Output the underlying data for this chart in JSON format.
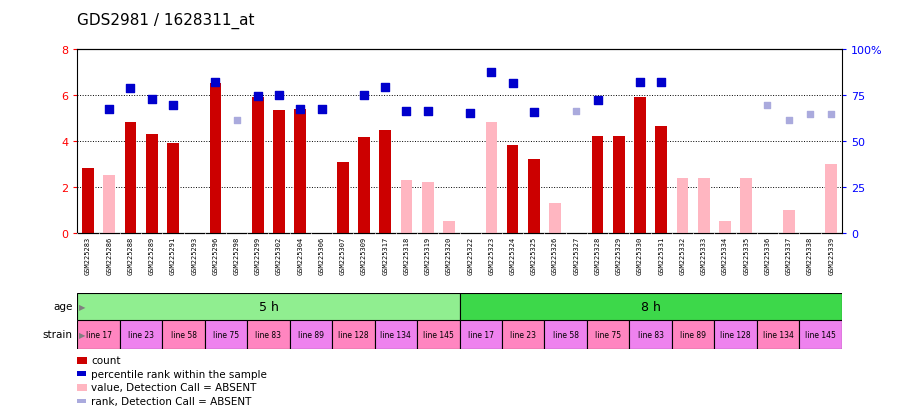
{
  "title": "GDS2981 / 1628311_at",
  "samples": [
    "GSM225283",
    "GSM225286",
    "GSM225288",
    "GSM225289",
    "GSM225291",
    "GSM225293",
    "GSM225296",
    "GSM225298",
    "GSM225299",
    "GSM225302",
    "GSM225304",
    "GSM225306",
    "GSM225307",
    "GSM225309",
    "GSM225317",
    "GSM225318",
    "GSM225319",
    "GSM225320",
    "GSM225322",
    "GSM225323",
    "GSM225324",
    "GSM225325",
    "GSM225326",
    "GSM225327",
    "GSM225328",
    "GSM225329",
    "GSM225330",
    "GSM225331",
    "GSM225332",
    "GSM225333",
    "GSM225334",
    "GSM225335",
    "GSM225336",
    "GSM225337",
    "GSM225338",
    "GSM225339"
  ],
  "count_values": [
    2.8,
    null,
    4.8,
    4.3,
    3.9,
    null,
    6.5,
    null,
    5.9,
    5.35,
    5.4,
    null,
    3.1,
    4.15,
    4.45,
    null,
    null,
    null,
    null,
    null,
    3.8,
    3.2,
    null,
    null,
    4.2,
    4.2,
    5.9,
    4.65,
    null,
    null,
    null,
    null,
    null,
    null,
    null,
    null
  ],
  "absent_bar_values": [
    null,
    2.5,
    null,
    null,
    null,
    null,
    null,
    null,
    null,
    null,
    null,
    null,
    null,
    null,
    null,
    2.3,
    2.2,
    0.5,
    null,
    4.8,
    null,
    null,
    1.3,
    null,
    null,
    null,
    null,
    null,
    2.4,
    2.4,
    0.5,
    2.4,
    null,
    1.0,
    null,
    3.0
  ],
  "rank_values": [
    null,
    5.4,
    6.3,
    5.8,
    5.55,
    null,
    6.55,
    null,
    5.95,
    6.0,
    5.4,
    5.4,
    null,
    6.0,
    6.35,
    5.3,
    5.3,
    null,
    5.2,
    7.0,
    6.5,
    5.25,
    null,
    null,
    5.75,
    null,
    6.55,
    6.55,
    null,
    null,
    null,
    null,
    null,
    null,
    null,
    null
  ],
  "absent_rank_values": [
    null,
    null,
    null,
    null,
    null,
    null,
    null,
    4.9,
    null,
    null,
    null,
    null,
    null,
    null,
    null,
    null,
    null,
    null,
    null,
    null,
    null,
    null,
    null,
    5.3,
    null,
    null,
    null,
    null,
    null,
    null,
    null,
    null,
    5.55,
    4.9,
    5.15,
    5.15
  ],
  "age_groups": [
    {
      "label": "5 h",
      "start": 0,
      "end": 18,
      "color": "#90EE90"
    },
    {
      "label": "8 h",
      "start": 18,
      "end": 36,
      "color": "#3DD84A"
    }
  ],
  "strain_groups": [
    {
      "label": "line 17",
      "start": 0,
      "end": 2,
      "color": "#FF85C0"
    },
    {
      "label": "line 23",
      "start": 2,
      "end": 4,
      "color": "#EE82EE"
    },
    {
      "label": "line 58",
      "start": 4,
      "end": 6,
      "color": "#FF85C0"
    },
    {
      "label": "line 75",
      "start": 6,
      "end": 8,
      "color": "#EE82EE"
    },
    {
      "label": "line 83",
      "start": 8,
      "end": 10,
      "color": "#FF85C0"
    },
    {
      "label": "line 89",
      "start": 10,
      "end": 12,
      "color": "#EE82EE"
    },
    {
      "label": "line 128",
      "start": 12,
      "end": 14,
      "color": "#FF85C0"
    },
    {
      "label": "line 134",
      "start": 14,
      "end": 16,
      "color": "#EE82EE"
    },
    {
      "label": "line 145",
      "start": 16,
      "end": 18,
      "color": "#FF85C0"
    },
    {
      "label": "line 17",
      "start": 18,
      "end": 20,
      "color": "#EE82EE"
    },
    {
      "label": "line 23",
      "start": 20,
      "end": 22,
      "color": "#FF85C0"
    },
    {
      "label": "line 58",
      "start": 22,
      "end": 24,
      "color": "#EE82EE"
    },
    {
      "label": "line 75",
      "start": 24,
      "end": 26,
      "color": "#FF85C0"
    },
    {
      "label": "line 83",
      "start": 26,
      "end": 28,
      "color": "#EE82EE"
    },
    {
      "label": "line 89",
      "start": 28,
      "end": 30,
      "color": "#FF85C0"
    },
    {
      "label": "line 128",
      "start": 30,
      "end": 32,
      "color": "#EE82EE"
    },
    {
      "label": "line 134",
      "start": 32,
      "end": 34,
      "color": "#FF85C0"
    },
    {
      "label": "line 145",
      "start": 34,
      "end": 36,
      "color": "#EE82EE"
    }
  ],
  "ylim": [
    0,
    8
  ],
  "y2lim": [
    0,
    100
  ],
  "yticks": [
    0,
    2,
    4,
    6,
    8
  ],
  "y2ticks": [
    0,
    25,
    50,
    75,
    100
  ],
  "bar_color_present": "#CC0000",
  "bar_color_absent": "#FFB6C1",
  "rank_color_present": "#0000CC",
  "rank_color_absent": "#AAAADD",
  "tick_bg_color": "#CCCCCC",
  "bg_color": "#FFFFFF",
  "label_fontsize": 8,
  "title_fontsize": 11,
  "legend_items": [
    {
      "color": "#CC0000",
      "style": "bar",
      "label": "count"
    },
    {
      "color": "#0000CC",
      "style": "square",
      "label": "percentile rank within the sample"
    },
    {
      "color": "#FFB6C1",
      "style": "bar",
      "label": "value, Detection Call = ABSENT"
    },
    {
      "color": "#AAAADD",
      "style": "square",
      "label": "rank, Detection Call = ABSENT"
    }
  ]
}
